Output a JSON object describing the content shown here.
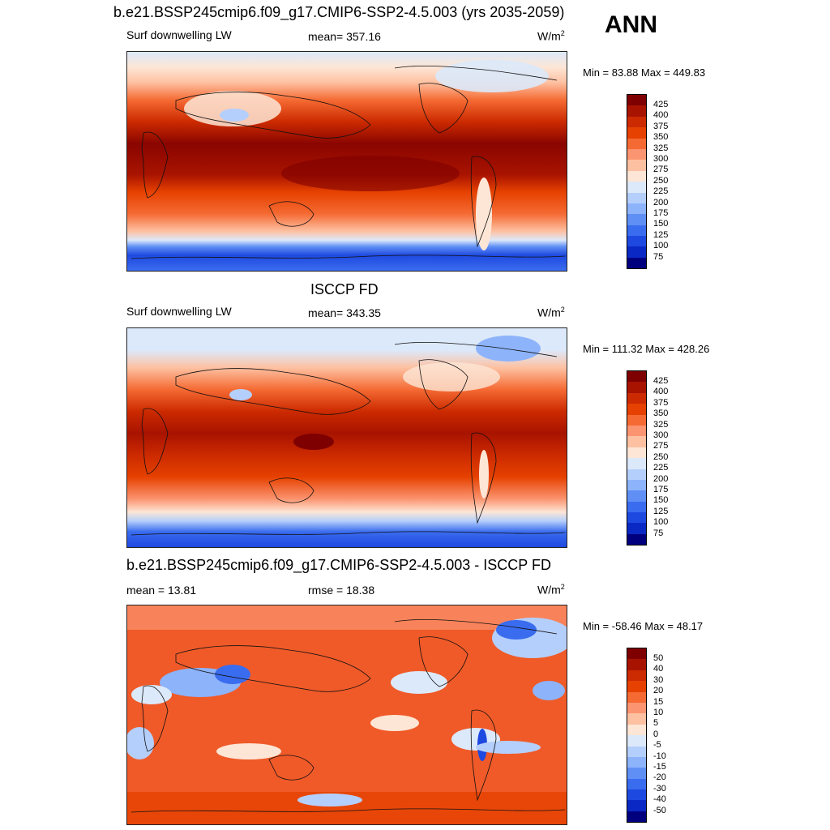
{
  "header": {
    "title": "b.e21.BSSP245cmip6.f09_g17.CMIP6-SSP2-4.5.003 (yrs 2035-2059)",
    "season": "ANN"
  },
  "panels": [
    {
      "title": "",
      "left_label": "Surf downwelling LW",
      "center_label": "mean= 357.16",
      "units": "W/m",
      "units_sup": "2",
      "minmax": "Min =  83.88 Max = 449.83",
      "colorbar_labels": [
        "425",
        "400",
        "375",
        "350",
        "325",
        "300",
        "275",
        "250",
        "225",
        "200",
        "175",
        "150",
        "125",
        "100",
        "75"
      ],
      "colorbar_colors": [
        "#7f0000",
        "#a81300",
        "#cc2a00",
        "#e64100",
        "#f56a33",
        "#fb9470",
        "#fdc1a2",
        "#fde6d6",
        "#dce9fa",
        "#b5cffc",
        "#8db3fb",
        "#5f8ff5",
        "#3a6cef",
        "#1e49e0",
        "#0a29c4",
        "#00007f"
      ]
    },
    {
      "title": "ISCCP FD",
      "left_label": "Surf downwelling LW",
      "center_label": "mean= 343.35",
      "units": "W/m",
      "units_sup": "2",
      "minmax": "Min = 111.32 Max = 428.26",
      "colorbar_labels": [
        "425",
        "400",
        "375",
        "350",
        "325",
        "300",
        "275",
        "250",
        "225",
        "200",
        "175",
        "150",
        "125",
        "100",
        "75"
      ],
      "colorbar_colors": [
        "#7f0000",
        "#a81300",
        "#cc2a00",
        "#e64100",
        "#f56a33",
        "#fb9470",
        "#fdc1a2",
        "#fde6d6",
        "#dce9fa",
        "#b5cffc",
        "#8db3fb",
        "#5f8ff5",
        "#3a6cef",
        "#1e49e0",
        "#0a29c4",
        "#00007f"
      ]
    },
    {
      "title": "b.e21.BSSP245cmip6.f09_g17.CMIP6-SSP2-4.5.003 - ISCCP FD",
      "left_label": "mean =  13.81",
      "center_label": "rmse =  18.38",
      "units": "W/m",
      "units_sup": "2",
      "minmax": "Min = -58.46 Max =  48.17",
      "colorbar_labels": [
        "50",
        "40",
        "30",
        "20",
        "15",
        "10",
        "5",
        "0",
        "-5",
        "-10",
        "-15",
        "-20",
        "-30",
        "-40",
        "-50"
      ],
      "colorbar_colors": [
        "#7f0000",
        "#a81300",
        "#cc2a00",
        "#e64100",
        "#f56a33",
        "#fb9470",
        "#fdc1a2",
        "#fde6d6",
        "#dce9fa",
        "#b5cffc",
        "#8db3fb",
        "#5f8ff5",
        "#3a6cef",
        "#1e49e0",
        "#0a29c4",
        "#00007f"
      ]
    }
  ]
}
